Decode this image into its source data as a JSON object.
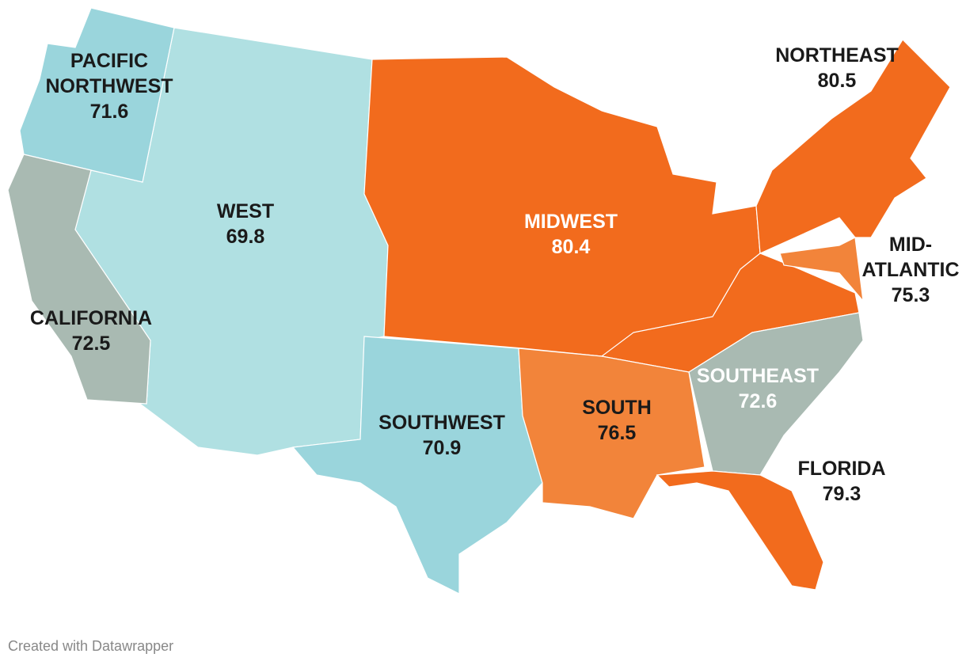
{
  "map": {
    "regions": [
      {
        "name_lines": [
          "WEST"
        ],
        "value": 69.8,
        "color": "#b0e0e2",
        "label_color": "#1a1a1a"
      },
      {
        "name_lines": [
          "PACIFIC",
          "NORTHWEST"
        ],
        "value": 71.6,
        "color": "#9ad5dc",
        "label_color": "#1a1a1a"
      },
      {
        "name_lines": [
          "CALIFORNIA"
        ],
        "value": 72.5,
        "color": "#a9bab2",
        "label_color": "#1a1a1a"
      },
      {
        "name_lines": [
          "SOUTHWEST"
        ],
        "value": 70.9,
        "color": "#9ad5dc",
        "label_color": "#1a1a1a"
      },
      {
        "name_lines": [
          "MIDWEST"
        ],
        "value": 80.4,
        "color": "#f26b1d",
        "label_color": "#ffffff"
      },
      {
        "name_lines": [
          "NORTHEAST"
        ],
        "value": 80.5,
        "color": "#f26b1d",
        "label_color": "#1a1a1a"
      },
      {
        "name_lines": [
          "MID-",
          "ATLANTIC"
        ],
        "value": 75.3,
        "color": "#f2843a",
        "label_color": "#1a1a1a"
      },
      {
        "name_lines": [
          "SOUTHEAST"
        ],
        "value": 72.6,
        "color": "#a9bab2",
        "label_color": "#ffffff"
      },
      {
        "name_lines": [
          "SOUTH"
        ],
        "value": 76.5,
        "color": "#f2843a",
        "label_color": "#1a1a1a"
      },
      {
        "name_lines": [
          "FLORIDA"
        ],
        "value": 79.3,
        "color": "#f26b1d",
        "label_color": "#1a1a1a"
      }
    ],
    "footer": "Created with Datawrapper"
  }
}
